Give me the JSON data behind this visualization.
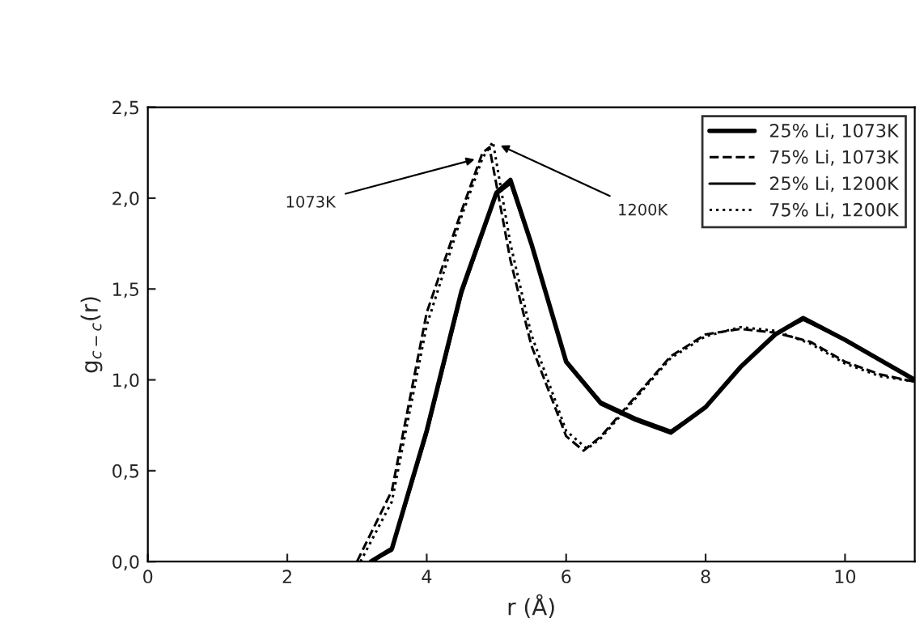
{
  "chart_data": {
    "type": "line",
    "xlabel": "r (Å)",
    "ylabel": "g$_{c−c}$(r)",
    "xlim": [
      0,
      11
    ],
    "ylim": [
      0,
      2.5
    ],
    "xticks": [
      0,
      2,
      4,
      6,
      8,
      10
    ],
    "yticks": [
      {
        "value": 0,
        "label": "0,0"
      },
      {
        "value": 0.5,
        "label": "0,5"
      },
      {
        "value": 1.0,
        "label": "1,0"
      },
      {
        "value": 1.5,
        "label": "1,5"
      },
      {
        "value": 2.0,
        "label": "2,0"
      },
      {
        "value": 2.5,
        "label": "2,5"
      }
    ],
    "grid": false,
    "legend": "top right",
    "series": [
      {
        "name": "25% Li, 1073K",
        "color": "#000000",
        "line_style": "solid",
        "x": [
          3.2,
          3.5,
          4.0,
          4.5,
          5.0,
          5.2,
          5.5,
          6.0,
          6.5,
          7.0,
          7.5,
          8.0,
          8.5,
          9.0,
          9.4,
          10.0,
          10.5,
          11.0
        ],
        "values": [
          0.0,
          0.07,
          0.72,
          1.49,
          2.03,
          2.1,
          1.75,
          1.1,
          0.87,
          0.78,
          0.71,
          0.85,
          1.07,
          1.25,
          1.34,
          1.22,
          1.11,
          1.0
        ]
      },
      {
        "name": "75% Li, 1073K",
        "color": "#000000",
        "line_style": "dashed",
        "x": [
          3.0,
          3.5,
          4.0,
          4.5,
          4.8,
          4.9,
          5.2,
          5.5,
          6.0,
          6.25,
          6.5,
          7.0,
          7.5,
          8.0,
          8.5,
          9.0,
          9.5,
          10.0,
          10.5,
          11.0
        ],
        "values": [
          0.0,
          0.39,
          1.37,
          1.93,
          2.25,
          2.28,
          1.66,
          1.19,
          0.69,
          0.61,
          0.69,
          0.91,
          1.13,
          1.25,
          1.28,
          1.26,
          1.21,
          1.1,
          1.03,
          0.99
        ]
      },
      {
        "name": "25% Li, 1200K",
        "color": "#000000",
        "line_style": "solid",
        "x": [
          3.2,
          3.5,
          4.0,
          4.5,
          5.0,
          5.2,
          5.5,
          6.0,
          6.5,
          7.0,
          7.5,
          8.0,
          8.5,
          9.0,
          9.4,
          10.0,
          10.5,
          11.0
        ],
        "values": [
          0.0,
          0.06,
          0.7,
          1.47,
          2.02,
          2.08,
          1.74,
          1.1,
          0.88,
          0.79,
          0.72,
          0.85,
          1.07,
          1.25,
          1.33,
          1.22,
          1.11,
          1.0
        ]
      },
      {
        "name": "75% Li, 1200K",
        "color": "#000000",
        "line_style": "dotted",
        "x": [
          3.05,
          3.5,
          4.0,
          4.5,
          4.8,
          4.95,
          5.2,
          5.5,
          6.0,
          6.3,
          6.5,
          7.0,
          7.5,
          8.0,
          8.5,
          9.0,
          9.5,
          10.0,
          10.5,
          11.0
        ],
        "values": [
          0.0,
          0.33,
          1.3,
          1.9,
          2.22,
          2.31,
          1.75,
          1.25,
          0.72,
          0.62,
          0.68,
          0.9,
          1.12,
          1.24,
          1.29,
          1.27,
          1.2,
          1.09,
          1.02,
          0.99
        ]
      }
    ],
    "annotations": [
      {
        "text": "1073K",
        "x": 4.75,
        "y": 2.22
      },
      {
        "text": "1200K",
        "x": 5.0,
        "y": 2.3
      }
    ]
  }
}
